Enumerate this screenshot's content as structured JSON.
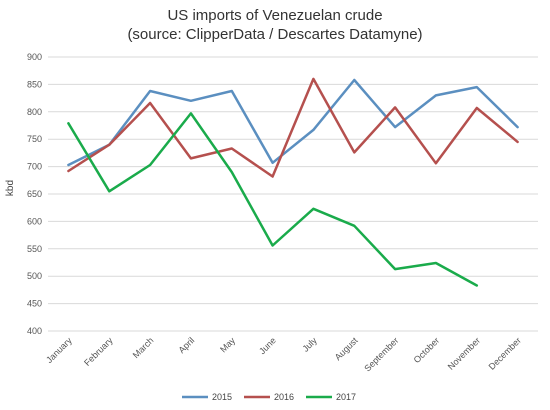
{
  "chart_data": {
    "type": "line",
    "title": "US imports of Venezuelan crude",
    "subtitle": "(source: ClipperData / Descartes Datamyne)",
    "ylabel": "kbd",
    "xlabel": "",
    "categories": [
      "January",
      "February",
      "March",
      "April",
      "May",
      "June",
      "July",
      "August",
      "September",
      "October",
      "November",
      "December"
    ],
    "ylim": [
      400,
      900
    ],
    "yticks": [
      "400",
      "450",
      "500",
      "550",
      "600",
      "650",
      "700",
      "750",
      "800",
      "850",
      "900"
    ],
    "grid": true,
    "legend_position": "bottom",
    "series": [
      {
        "name": "2015",
        "color": "#5b8fc0",
        "values": [
          703,
          740,
          838,
          820,
          838,
          707,
          767,
          858,
          772,
          830,
          845,
          772
        ]
      },
      {
        "name": "2016",
        "color": "#b5504e",
        "values": [
          692,
          740,
          816,
          715,
          733,
          682,
          860,
          726,
          808,
          706,
          807,
          745
        ]
      },
      {
        "name": "2017",
        "color": "#1aab4b",
        "values": [
          779,
          655,
          703,
          797,
          690,
          556,
          623,
          592,
          513,
          524,
          483,
          null
        ]
      }
    ]
  }
}
